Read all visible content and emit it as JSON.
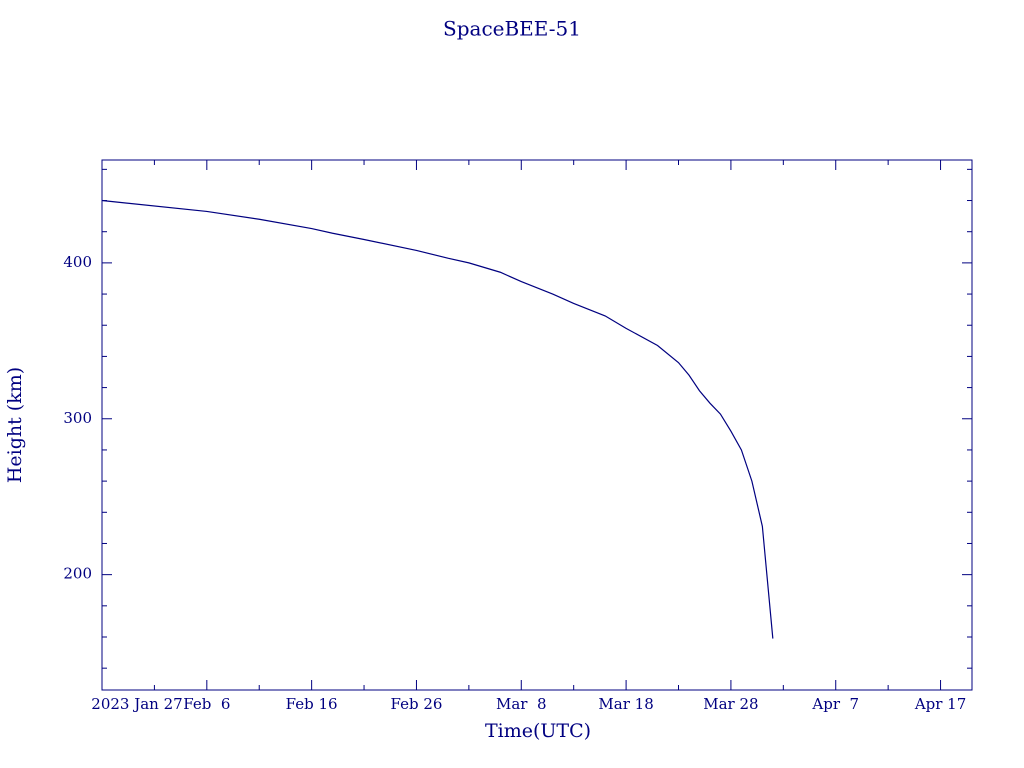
{
  "chart_data": {
    "type": "line",
    "title": "SpaceBEE-51",
    "x_label": "Time(UTC)",
    "y_label": "Height (km)",
    "x": [
      "2023-01-27",
      "2023-02-06",
      "2023-02-11",
      "2023-02-16",
      "2023-02-18",
      "2023-02-21",
      "2023-02-26",
      "2023-03-01",
      "2023-03-03",
      "2023-03-06",
      "2023-03-08",
      "2023-03-11",
      "2023-03-13",
      "2023-03-16",
      "2023-03-18",
      "2023-03-21",
      "2023-03-23",
      "2023-03-24",
      "2023-03-25",
      "2023-03-26",
      "2023-03-27",
      "2023-03-28",
      "2023-03-29",
      "2023-03-30",
      "2023-03-31",
      "2023-04-01"
    ],
    "series": [
      {
        "color": "#000080",
        "values": [
          440,
          433,
          428,
          422,
          419,
          415,
          408,
          403,
          400,
          394,
          388,
          380,
          374,
          366,
          358,
          347,
          336,
          328,
          318,
          310,
          303,
          292,
          280,
          260,
          231,
          159
        ]
      }
    ],
    "xlim": [
      "2023-01-27",
      "2023-04-20"
    ],
    "xticks": [
      {
        "value": "2023-01-27",
        "label": "2023 Jan 27"
      },
      {
        "value": "2023-02-06",
        "label": "Feb  6"
      },
      {
        "value": "2023-02-16",
        "label": "Feb 16"
      },
      {
        "value": "2023-02-26",
        "label": "Feb 26"
      },
      {
        "value": "2023-03-08",
        "label": "Mar  8"
      },
      {
        "value": "2023-03-18",
        "label": "Mar 18"
      },
      {
        "value": "2023-03-28",
        "label": "Mar 28"
      },
      {
        "value": "2023-04-07",
        "label": "Apr  7"
      },
      {
        "value": "2023-04-17",
        "label": "Apr 17"
      }
    ],
    "xminorticks": [
      "2023-02-01",
      "2023-02-11",
      "2023-02-21",
      "2023-03-03",
      "2023-03-13",
      "2023-03-23",
      "2023-04-02",
      "2023-04-12"
    ],
    "ylim": [
      126,
      466
    ],
    "yticks": [
      200,
      300,
      400
    ],
    "yminorticks": [
      140,
      160,
      180,
      220,
      240,
      260,
      280,
      320,
      340,
      360,
      380,
      420,
      440,
      460
    ]
  }
}
